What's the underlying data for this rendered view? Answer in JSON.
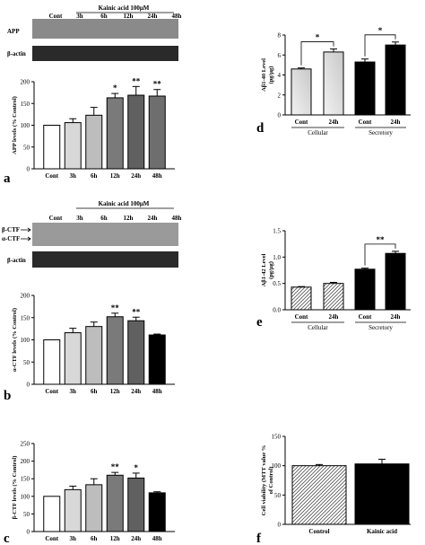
{
  "chart_data": [
    {
      "panel": "a",
      "type": "bar",
      "blot": {
        "treatment": "Kainic acid 100μM",
        "rows": [
          "APP",
          "β-actin"
        ]
      },
      "ylabel": "APP levels (% Control)",
      "ylim": [
        0,
        200
      ],
      "yticks": [
        "0",
        "50",
        "100",
        "150",
        "200"
      ],
      "categories": [
        "Cont",
        "3h",
        "6h",
        "12h",
        "24h",
        "48h"
      ],
      "values": [
        100,
        106,
        123,
        163,
        169,
        167
      ],
      "errors": [
        0,
        9,
        18,
        10,
        20,
        15
      ],
      "significance": [
        "",
        "",
        "",
        "*",
        "**",
        "**"
      ]
    },
    {
      "panel": "b",
      "type": "bar",
      "blot": {
        "treatment": "Kainic acid 100μM",
        "rows": [
          "β-CTF",
          "α-CTF",
          "β-actin"
        ]
      },
      "ylabel": "α-CTF levels (% Control)",
      "ylim": [
        0,
        200
      ],
      "yticks": [
        "0",
        "50",
        "100",
        "150",
        "200"
      ],
      "categories": [
        "Cont",
        "3h",
        "6h",
        "12h",
        "24h",
        "48h"
      ],
      "values": [
        100,
        116,
        130,
        152,
        143,
        111
      ],
      "errors": [
        0,
        10,
        10,
        8,
        8,
        2
      ],
      "significance": [
        "",
        "",
        "",
        "**",
        "**",
        ""
      ]
    },
    {
      "panel": "c",
      "type": "bar",
      "ylabel": "β-CTF levels (% Control)",
      "ylim": [
        0,
        250
      ],
      "yticks": [
        "0",
        "50",
        "100",
        "150",
        "200",
        "250"
      ],
      "categories": [
        "Cont",
        "3h",
        "6h",
        "12h",
        "24h",
        "48h"
      ],
      "values": [
        100,
        119,
        133,
        160,
        152,
        110
      ],
      "errors": [
        0,
        10,
        17,
        8,
        14,
        3
      ],
      "significance": [
        "",
        "",
        "",
        "**",
        "*",
        ""
      ]
    },
    {
      "panel": "d",
      "type": "bar",
      "ylabel": "Aβ1-40 Level",
      "yunit": "(pg/μg)",
      "ylim": [
        0,
        8
      ],
      "yticks": [
        "0",
        "2",
        "4",
        "6",
        "8"
      ],
      "categories": [
        "Cont",
        "24h",
        "Cont",
        "24h"
      ],
      "groups": [
        "Cellular",
        "Secretory"
      ],
      "values": [
        4.6,
        6.3,
        5.3,
        7.0
      ],
      "errors": [
        0.1,
        0.3,
        0.3,
        0.3
      ],
      "significance": "*"
    },
    {
      "panel": "e",
      "type": "bar",
      "ylabel": "Aβ1-42 Level",
      "yunit": "(pg/μg)",
      "ylim": [
        0,
        1.5
      ],
      "yticks": [
        "0.0",
        "0.5",
        "1.0",
        "1.5"
      ],
      "categories": [
        "Cont",
        "24h",
        "Cont",
        "24h"
      ],
      "groups": [
        "Cellular",
        "Secretory"
      ],
      "values": [
        0.43,
        0.5,
        0.77,
        1.07
      ],
      "errors": [
        0.01,
        0.02,
        0.02,
        0.04
      ],
      "significance": "**"
    },
    {
      "panel": "f",
      "type": "bar",
      "ylabel": "Cell viability (MTT value %",
      "yunit": "of Control)",
      "ylim": [
        0,
        150
      ],
      "yticks": [
        "0",
        "50",
        "100",
        "150"
      ],
      "categories": [
        "Control",
        "Kainic acid"
      ],
      "values": [
        100,
        103
      ],
      "errors": [
        2,
        8
      ]
    }
  ]
}
